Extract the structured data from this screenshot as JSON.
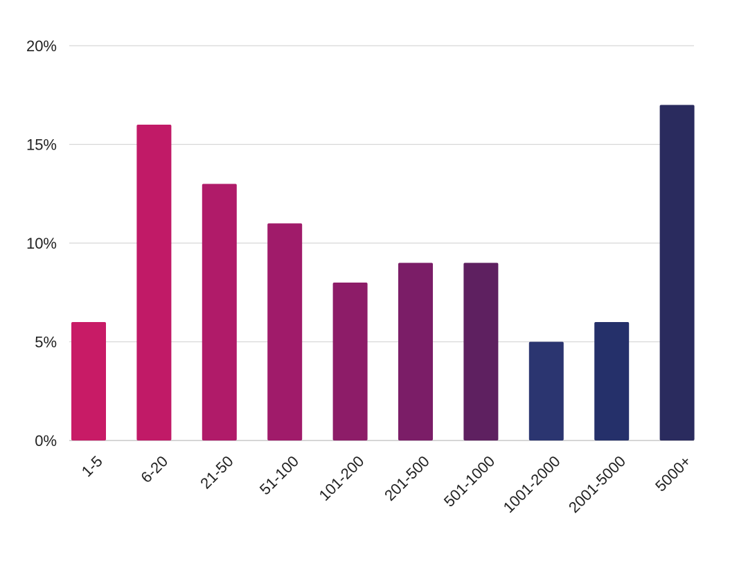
{
  "chart_data": {
    "type": "bar",
    "categories": [
      "1-5",
      "6-20",
      "21-50",
      "51-100",
      "101-200",
      "201-500",
      "501-1000",
      "1001-2000",
      "2001-5000",
      "5000+"
    ],
    "values": [
      6,
      16,
      13,
      11,
      8,
      9,
      9,
      5,
      6,
      17
    ],
    "value_unit": "%",
    "ylim": [
      0,
      20
    ],
    "yticks": [
      0,
      5,
      10,
      15,
      20
    ],
    "ytick_labels": [
      "0%",
      "5%",
      "10%",
      "15%",
      "20%"
    ],
    "grid": true,
    "legend": "none",
    "colors": [
      "#c81b66",
      "#c11a67",
      "#b01b69",
      "#a01b6a",
      "#8d1c68",
      "#7b1d67",
      "#5e2060",
      "#2b3570",
      "#25306a",
      "#2a2b5e"
    ]
  }
}
